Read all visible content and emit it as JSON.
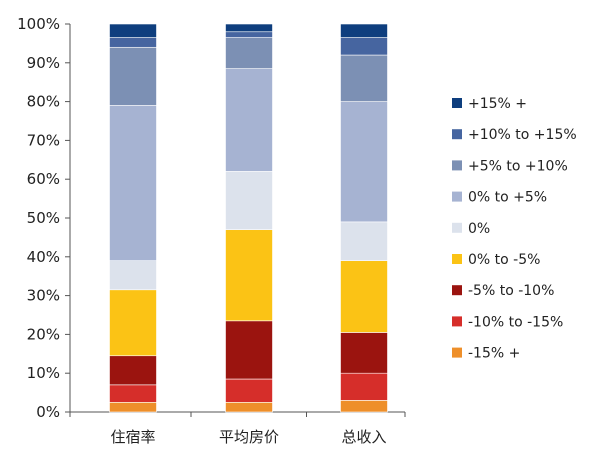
{
  "chart_data": {
    "type": "bar",
    "stacked": true,
    "categories": [
      "住宿率",
      "平均房价",
      "总收入"
    ],
    "ylim": [
      0,
      100
    ],
    "y_ticks": [
      "0%",
      "10%",
      "20%",
      "30%",
      "40%",
      "50%",
      "60%",
      "70%",
      "80%",
      "90%",
      "100%"
    ],
    "legend_position": "right",
    "series": [
      {
        "name": "-15% +",
        "color": "#EE8F2A",
        "values": [
          2.5,
          2.5,
          3
        ]
      },
      {
        "name": "-10% to -15%",
        "color": "#D62E2A",
        "values": [
          4.5,
          6,
          7
        ]
      },
      {
        "name": "-5% to -10%",
        "color": "#9B140F",
        "values": [
          7.5,
          15,
          10.5
        ]
      },
      {
        "name": "0% to -5%",
        "color": "#FBC315",
        "values": [
          17,
          23.5,
          18.5
        ]
      },
      {
        "name": "0%",
        "color": "#DCE2EC",
        "values": [
          7.5,
          15,
          10
        ]
      },
      {
        "name": "0% to +5%",
        "color": "#A6B3D2",
        "values": [
          40,
          26.5,
          31
        ]
      },
      {
        "name": "+5% to +10%",
        "color": "#7C90B4",
        "values": [
          15,
          8,
          12
        ]
      },
      {
        "name": "+10% to +15%",
        "color": "#4665A0",
        "values": [
          2.5,
          1.5,
          4.5
        ]
      },
      {
        "name": "+15% +",
        "color": "#0E3E7E",
        "values": [
          3.5,
          2,
          3.5
        ]
      }
    ]
  }
}
